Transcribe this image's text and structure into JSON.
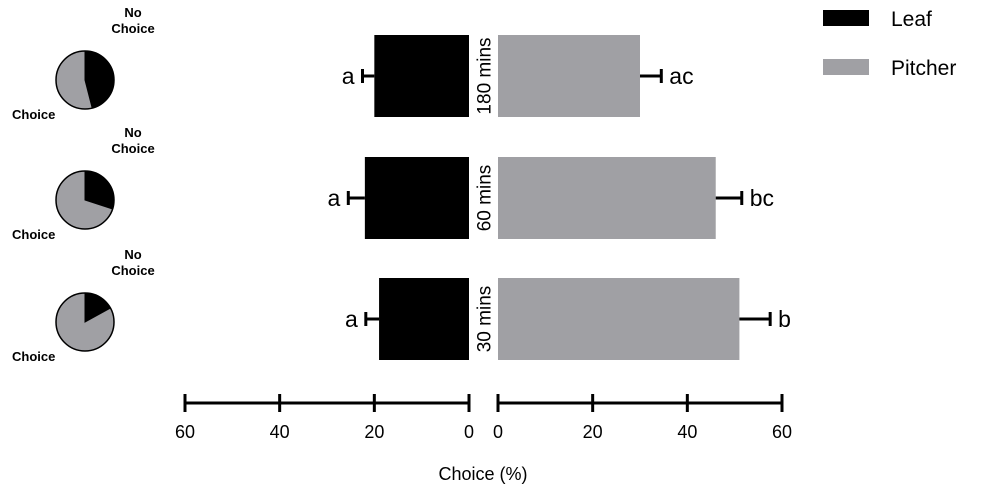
{
  "chart_data": {
    "type": "bar",
    "orientation": "horizontal-mirrored",
    "xlabel": "Choice (%)",
    "categories": [
      "180 mins",
      "60 mins",
      "30 mins"
    ],
    "series": [
      {
        "name": "Leaf",
        "color": "#000000",
        "side": "left",
        "values": [
          20,
          22,
          19
        ],
        "errors": [
          2.5,
          3.5,
          2.8
        ],
        "letters": [
          "a",
          "a",
          "a"
        ]
      },
      {
        "name": "Pitcher",
        "color": "#a0a0a4",
        "side": "right",
        "values": [
          30,
          46,
          51
        ],
        "errors": [
          4.5,
          5.5,
          6.5
        ],
        "letters": [
          "ac",
          "bc",
          "b"
        ]
      }
    ],
    "left_axis": {
      "ticks": [
        60,
        40,
        20,
        0
      ],
      "range": [
        0,
        60
      ]
    },
    "right_axis": {
      "ticks": [
        0,
        20,
        40,
        60
      ],
      "range": [
        0,
        60
      ]
    },
    "pies": [
      {
        "time": "180 mins",
        "choice_label": "Choice",
        "no_choice_label": "No Choice",
        "no_choice_fraction": 0.46
      },
      {
        "time": "60 mins",
        "choice_label": "Choice",
        "no_choice_label": "No Choice",
        "no_choice_fraction": 0.3
      },
      {
        "time": "30 mins",
        "choice_label": "Choice",
        "no_choice_label": "No Choice",
        "no_choice_fraction": 0.17
      }
    ],
    "pie_colors": {
      "choice": "#a0a0a4",
      "no_choice": "#000000"
    },
    "legend": {
      "position": "top-right"
    },
    "grid": false
  }
}
